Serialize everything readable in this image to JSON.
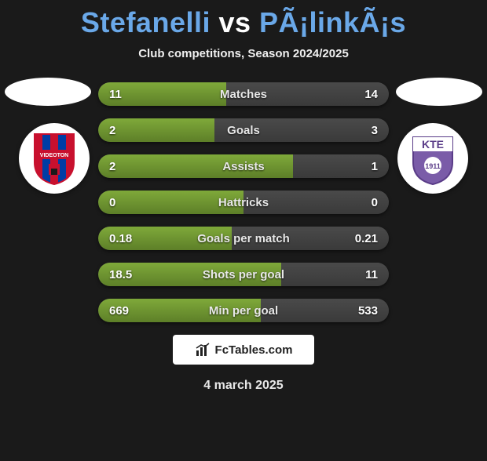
{
  "title_parts": {
    "p1": "Stefanelli",
    "vs": " vs ",
    "p2": "PÃ¡linkÃ¡s"
  },
  "title_colors": {
    "p1": "#6aa8e8",
    "vs": "#ffffff",
    "p2": "#6aa8e8"
  },
  "subtitle": "Club competitions, Season 2024/2025",
  "left_club": {
    "name": "Videoton",
    "bg": "#ffffff",
    "stripe_colors": [
      "#c8102e",
      "#003da5",
      "#c8102e",
      "#003da5",
      "#c8102e"
    ],
    "label_text": "VIDEOTON",
    "label_bg": "#c8102e"
  },
  "right_club": {
    "name": "KTE",
    "bg": "#ffffff",
    "shield_fill": "#7a5ca8",
    "text": "KTE",
    "year": "1911"
  },
  "row_style": {
    "left_fill": "#7fa93a",
    "right_fill": "#3a3a3a",
    "track": "#3a3a3a",
    "label_color": "#e8e8e8",
    "value_color": "#ffffff",
    "fontsize": 15,
    "height": 30,
    "radius": 16
  },
  "rows": [
    {
      "label": "Matches",
      "left_val": "11",
      "right_val": "14",
      "left_pct": 44
    },
    {
      "label": "Goals",
      "left_val": "2",
      "right_val": "3",
      "left_pct": 40
    },
    {
      "label": "Assists",
      "left_val": "2",
      "right_val": "1",
      "left_pct": 67
    },
    {
      "label": "Hattricks",
      "left_val": "0",
      "right_val": "0",
      "left_pct": 50
    },
    {
      "label": "Goals per match",
      "left_val": "0.18",
      "right_val": "0.21",
      "left_pct": 46
    },
    {
      "label": "Shots per goal",
      "left_val": "18.5",
      "right_val": "11",
      "left_pct": 63
    },
    {
      "label": "Min per goal",
      "left_val": "669",
      "right_val": "533",
      "left_pct": 56
    }
  ],
  "footer": {
    "brand": "FcTables.com",
    "icon_color": "#222222"
  },
  "date": "4 march 2025",
  "background_color": "#1a1a1a"
}
